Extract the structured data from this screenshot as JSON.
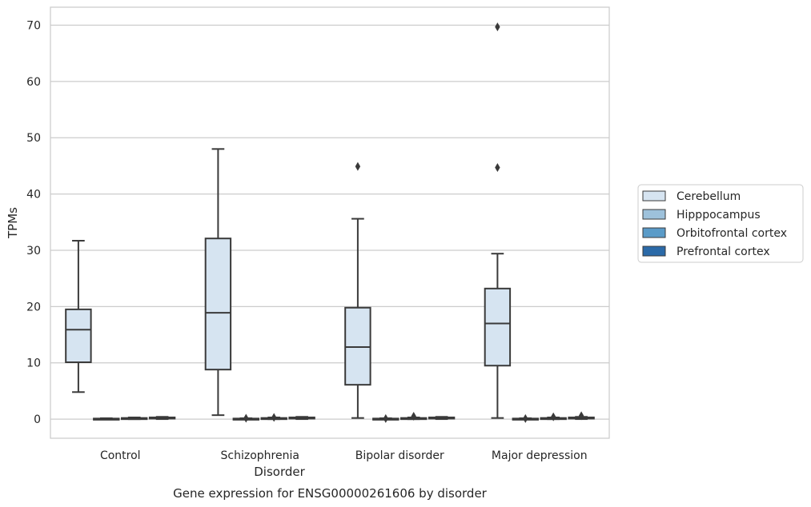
{
  "chart_data": {
    "type": "boxplot",
    "title": "Gene expression for ENSG00000261606 by disorder",
    "xlabel": "Disorder",
    "ylabel": "TPMs",
    "ylim": [
      -3.4,
      73.2
    ],
    "yticks": [
      0,
      10,
      20,
      30,
      40,
      50,
      60,
      70
    ],
    "grid": true,
    "legend_position": "right",
    "categories": [
      "Control",
      "Schizophrenia",
      "Bipolar disorder",
      "Major depression"
    ],
    "series": [
      {
        "name": "Cerebellum",
        "color": "#d6e4f1",
        "boxes": [
          {
            "whisker_low": 4.8,
            "q1": 10.1,
            "median": 15.9,
            "q3": 19.5,
            "whisker_high": 31.7,
            "outliers": []
          },
          {
            "whisker_low": 0.7,
            "q1": 8.8,
            "median": 18.9,
            "q3": 32.1,
            "whisker_high": 48.0,
            "outliers": []
          },
          {
            "whisker_low": 0.2,
            "q1": 6.1,
            "median": 12.8,
            "q3": 19.8,
            "whisker_high": 35.6,
            "outliers": [
              44.9
            ]
          },
          {
            "whisker_low": 0.2,
            "q1": 9.5,
            "median": 17.0,
            "q3": 23.2,
            "whisker_high": 29.4,
            "outliers": [
              44.7,
              69.7
            ]
          }
        ]
      },
      {
        "name": "Hipppocampus",
        "color": "#9dc1db",
        "boxes": [
          {
            "whisker_low": 0.0,
            "q1": 0.0,
            "median": 0.05,
            "q3": 0.1,
            "whisker_high": 0.15,
            "outliers": []
          },
          {
            "whisker_low": 0.0,
            "q1": 0.0,
            "median": 0.05,
            "q3": 0.1,
            "whisker_high": 0.15,
            "outliers": [
              0.15
            ]
          },
          {
            "whisker_low": 0.0,
            "q1": 0.0,
            "median": 0.05,
            "q3": 0.1,
            "whisker_high": 0.15,
            "outliers": [
              0.1
            ]
          },
          {
            "whisker_low": 0.0,
            "q1": 0.0,
            "median": 0.05,
            "q3": 0.1,
            "whisker_high": 0.15,
            "outliers": [
              0.1
            ]
          }
        ]
      },
      {
        "name": "Orbitofrontal cortex",
        "color": "#5a9bc8",
        "boxes": [
          {
            "whisker_low": 0.0,
            "q1": 0.05,
            "median": 0.1,
            "q3": 0.2,
            "whisker_high": 0.3,
            "outliers": []
          },
          {
            "whisker_low": 0.0,
            "q1": 0.05,
            "median": 0.1,
            "q3": 0.2,
            "whisker_high": 0.3,
            "outliers": [
              0.3
            ]
          },
          {
            "whisker_low": 0.0,
            "q1": 0.05,
            "median": 0.1,
            "q3": 0.2,
            "whisker_high": 0.3,
            "outliers": [
              0.5
            ]
          },
          {
            "whisker_low": 0.0,
            "q1": 0.05,
            "median": 0.1,
            "q3": 0.2,
            "whisker_high": 0.3,
            "outliers": [
              0.4
            ]
          }
        ]
      },
      {
        "name": "Prefrontal cortex",
        "color": "#2b6aa8",
        "boxes": [
          {
            "whisker_low": 0.0,
            "q1": 0.1,
            "median": 0.2,
            "q3": 0.3,
            "whisker_high": 0.4,
            "outliers": []
          },
          {
            "whisker_low": 0.0,
            "q1": 0.1,
            "median": 0.2,
            "q3": 0.3,
            "whisker_high": 0.4,
            "outliers": []
          },
          {
            "whisker_low": 0.0,
            "q1": 0.1,
            "median": 0.2,
            "q3": 0.3,
            "whisker_high": 0.4,
            "outliers": []
          },
          {
            "whisker_low": 0.0,
            "q1": 0.1,
            "median": 0.2,
            "q3": 0.3,
            "whisker_high": 0.4,
            "outliers": [
              0.6
            ]
          }
        ]
      }
    ]
  }
}
